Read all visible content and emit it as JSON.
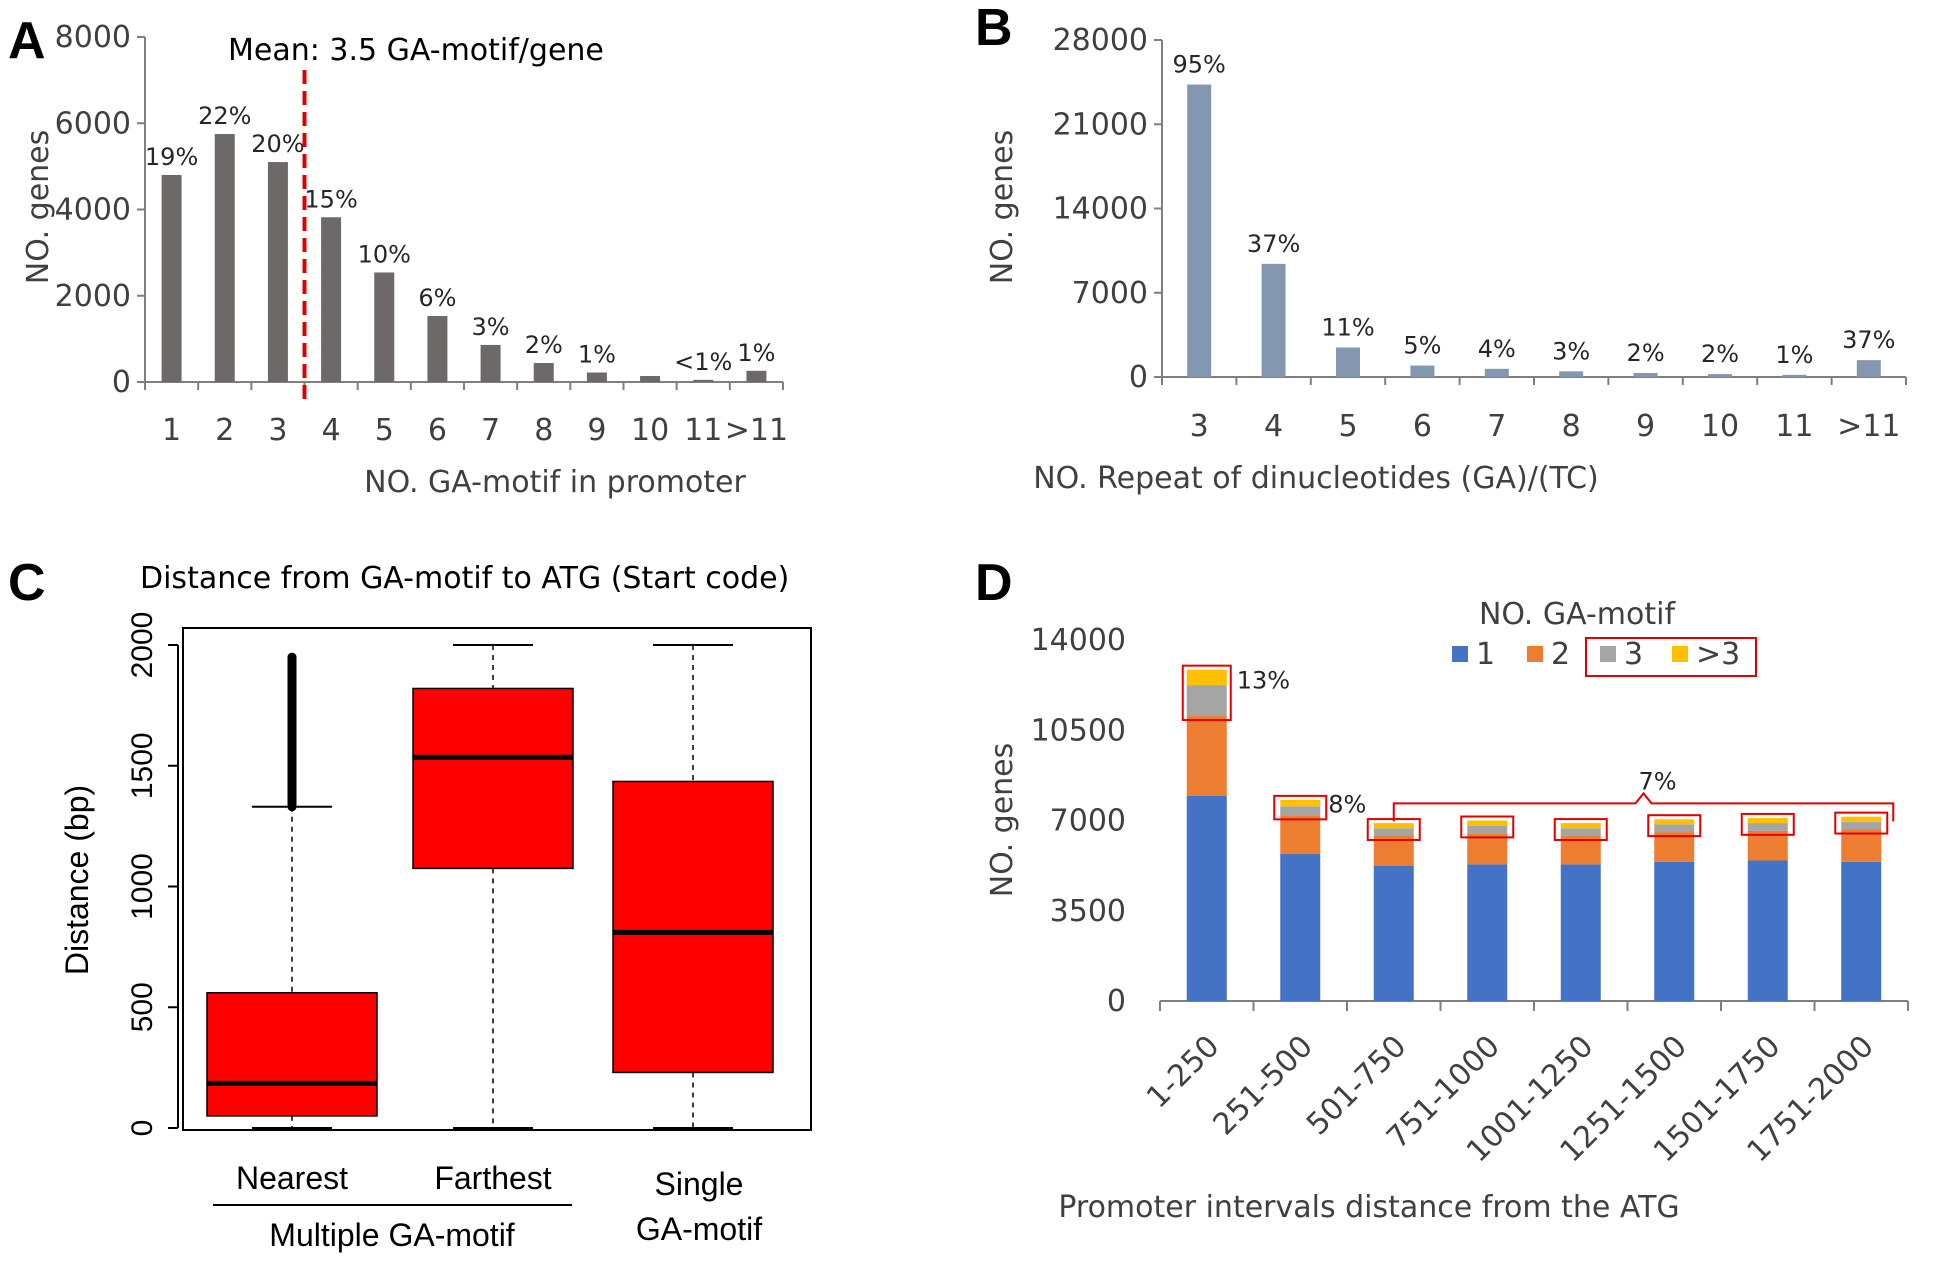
{
  "colors": {
    "barA": "#6d6968",
    "barB": "#8497b0",
    "box": "#ff0000",
    "s1": "#4472c4",
    "s2": "#ed7d31",
    "s3": "#a5a5a5",
    "s4": "#ffc000",
    "mean_line": "#e00000"
  },
  "chart_data": [
    {
      "panel": "A",
      "type": "bar",
      "title": "Mean: 3.5 GA-motif/gene",
      "xlabel": "NO. GA-motif in promoter",
      "ylabel": "NO. genes",
      "ylim": [
        0,
        8000
      ],
      "yticks": [
        "0",
        "2000",
        "4000",
        "6000",
        "8000"
      ],
      "categories": [
        "1",
        "2",
        "3",
        "4",
        "5",
        "6",
        "7",
        "8",
        "9",
        "10",
        "11",
        ">11"
      ],
      "values": [
        4800,
        5750,
        5100,
        3820,
        2540,
        1530,
        860,
        440,
        220,
        140,
        50,
        260
      ],
      "labels": [
        "19%",
        "22%",
        "20%",
        "15%",
        "10%",
        "6%",
        "3%",
        "2%",
        "1%",
        "",
        "<1%",
        "1%"
      ],
      "mean": 3.5
    },
    {
      "panel": "B",
      "type": "bar",
      "xlabel": "NO. Repeat of dinucleotides (GA)/(TC)",
      "ylabel": "NO. genes",
      "ylim": [
        0,
        28000
      ],
      "yticks": [
        "0",
        "7000",
        "14000",
        "21000",
        "28000"
      ],
      "categories": [
        "3",
        "4",
        "5",
        "6",
        "7",
        "8",
        "9",
        "10",
        "11",
        ">11"
      ],
      "values": [
        24300,
        9400,
        2450,
        950,
        680,
        470,
        330,
        240,
        180,
        1400
      ],
      "labels": [
        "95%",
        "37%",
        "11%",
        "5%",
        "4%",
        "3%",
        "2%",
        "2%",
        "1%",
        "37%"
      ]
    },
    {
      "panel": "C",
      "type": "box",
      "title": "Distance from GA-motif to ATG (Start code)",
      "ylabel": "Distance (bp)",
      "ylim": [
        0,
        2000
      ],
      "yticks": [
        "0",
        "500",
        "1000",
        "1500",
        "2000"
      ],
      "categories": [
        "Nearest",
        "Farthest",
        "Single"
      ],
      "category_sub": [
        "",
        "",
        "GA-motif"
      ],
      "group_label": "Multiple GA-motif",
      "boxes": [
        {
          "min": 0,
          "q1": 50,
          "median": 185,
          "q3": 560,
          "whisker_hi": 1330,
          "outliers_to": 1950
        },
        {
          "min": 0,
          "q1": 1075,
          "median": 1535,
          "q3": 1820,
          "whisker_hi": 2000
        },
        {
          "min": 0,
          "q1": 230,
          "median": 810,
          "q3": 1435,
          "whisker_hi": 2000
        }
      ]
    },
    {
      "panel": "D",
      "type": "stacked-bar",
      "legend_title": "NO. GA-motif",
      "xlabel": "Promoter intervals distance from the ATG",
      "ylabel": "NO. genes",
      "ylim": [
        0,
        14000
      ],
      "yticks": [
        "0",
        "3500",
        "7000",
        "10500",
        "14000"
      ],
      "categories": [
        "1-250",
        "251-500",
        "501-750",
        "751-1000",
        "1001-1250",
        "1251-1500",
        "1501-1750",
        "1751-2000"
      ],
      "series": [
        {
          "name": "1",
          "values": [
            7950,
            5700,
            5250,
            5300,
            5300,
            5400,
            5450,
            5400
          ]
        },
        {
          "name": "2",
          "values": [
            3100,
            1500,
            1150,
            1200,
            1100,
            1150,
            1150,
            1250
          ]
        },
        {
          "name": "3",
          "values": [
            1200,
            350,
            300,
            300,
            300,
            300,
            300,
            300
          ]
        },
        {
          "name": ">3",
          "values": [
            600,
            250,
            200,
            200,
            200,
            200,
            200,
            200
          ]
        }
      ],
      "annotations": [
        "13%",
        "8%",
        "7%"
      ]
    }
  ]
}
